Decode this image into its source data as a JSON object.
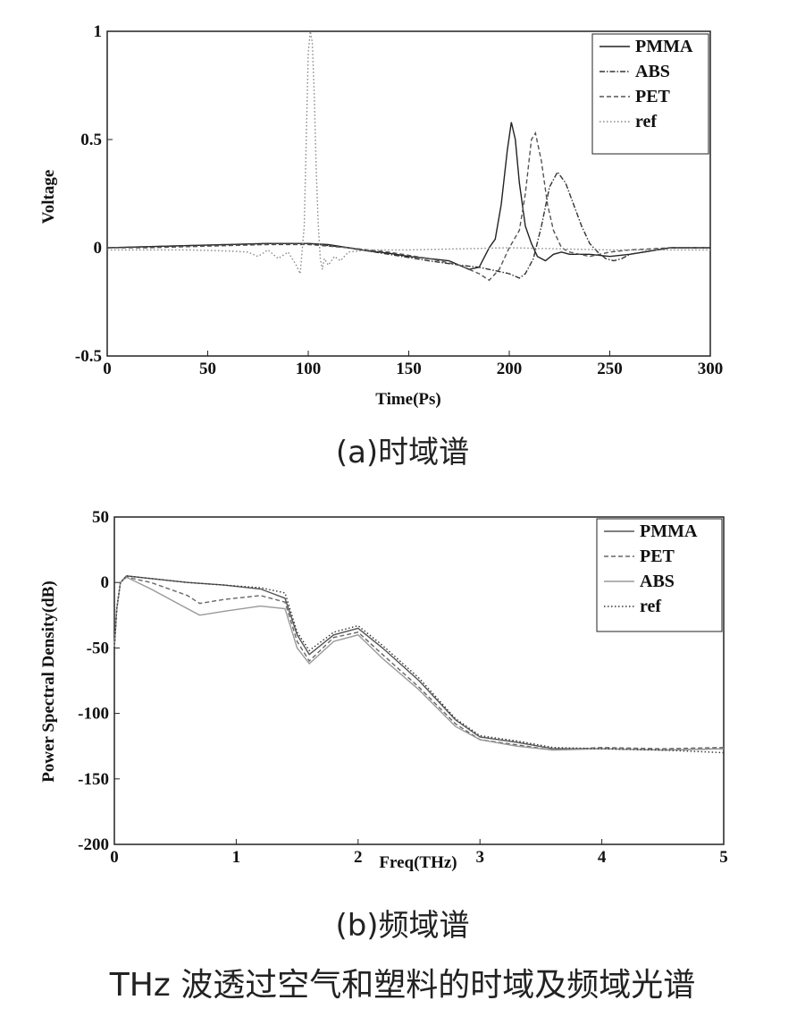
{
  "chart_data": [
    {
      "type": "line",
      "title": "",
      "xlabel": "Time(Ps)",
      "ylabel": "Voltage",
      "xlim": [
        0,
        300
      ],
      "ylim": [
        -0.5,
        1
      ],
      "xticks": [
        "0",
        "50",
        "100",
        "150",
        "200",
        "250",
        "300"
      ],
      "yticks": [
        "-0.5",
        "0",
        "0.5",
        "1"
      ],
      "legend_position": "top-right",
      "series": [
        {
          "name": "PMMA",
          "style": "solid",
          "color": "#222222",
          "x": [
            0,
            20,
            40,
            60,
            80,
            100,
            110,
            120,
            130,
            140,
            150,
            160,
            170,
            175,
            180,
            185,
            190,
            193,
            196,
            199,
            201,
            203,
            205,
            208,
            211,
            214,
            218,
            222,
            226,
            230,
            240,
            250,
            260,
            280,
            300
          ],
          "y": [
            0.0,
            0.005,
            0.01,
            0.015,
            0.02,
            0.02,
            0.015,
            0.0,
            -0.015,
            -0.025,
            -0.04,
            -0.05,
            -0.06,
            -0.08,
            -0.1,
            -0.09,
            0.0,
            0.04,
            0.2,
            0.45,
            0.58,
            0.5,
            0.3,
            0.1,
            0.02,
            -0.04,
            -0.06,
            -0.03,
            -0.02,
            -0.03,
            -0.03,
            -0.04,
            -0.03,
            0.0,
            0.0
          ]
        },
        {
          "name": "ABS",
          "style": "dash-dot",
          "color": "#333333",
          "x": [
            0,
            20,
            40,
            60,
            80,
            100,
            120,
            140,
            160,
            175,
            185,
            190,
            195,
            200,
            205,
            208,
            212,
            216,
            220,
            224,
            228,
            232,
            236,
            240,
            244,
            248,
            252,
            256,
            260,
            280,
            300
          ],
          "y": [
            0.0,
            0.005,
            0.01,
            0.015,
            0.02,
            0.02,
            0.0,
            -0.03,
            -0.06,
            -0.08,
            -0.09,
            -0.1,
            -0.11,
            -0.12,
            -0.14,
            -0.12,
            -0.05,
            0.1,
            0.28,
            0.35,
            0.3,
            0.2,
            0.1,
            0.02,
            -0.02,
            -0.05,
            -0.06,
            -0.05,
            -0.03,
            0.0,
            0.0
          ]
        },
        {
          "name": "PET",
          "style": "dashed",
          "color": "#555555",
          "x": [
            0,
            20,
            40,
            60,
            80,
            100,
            120,
            140,
            160,
            175,
            185,
            190,
            195,
            200,
            205,
            208,
            211,
            213,
            216,
            219,
            222,
            226,
            230,
            235,
            240,
            245,
            250,
            260,
            280,
            300
          ],
          "y": [
            0.0,
            0.0,
            0.005,
            0.01,
            0.015,
            0.015,
            0.0,
            -0.02,
            -0.05,
            -0.08,
            -0.12,
            -0.15,
            -0.1,
            0.0,
            0.08,
            0.25,
            0.5,
            0.53,
            0.4,
            0.2,
            0.08,
            0.0,
            -0.02,
            -0.03,
            -0.04,
            -0.03,
            -0.02,
            -0.01,
            0.0,
            0.0
          ]
        },
        {
          "name": "ref",
          "style": "dotted",
          "color": "#888888",
          "x": [
            0,
            20,
            40,
            60,
            70,
            75,
            80,
            85,
            90,
            94,
            96,
            98,
            99,
            100,
            101,
            102,
            103,
            104,
            105,
            106,
            107,
            108,
            110,
            113,
            116,
            120,
            130,
            150,
            200,
            250,
            300
          ],
          "y": [
            -0.01,
            -0.01,
            -0.01,
            -0.015,
            -0.02,
            -0.04,
            -0.01,
            -0.05,
            -0.02,
            -0.08,
            -0.12,
            0.1,
            0.5,
            0.9,
            1.0,
            0.95,
            0.7,
            0.35,
            0.1,
            -0.05,
            -0.1,
            -0.05,
            -0.08,
            -0.04,
            -0.06,
            -0.02,
            -0.01,
            -0.01,
            0.0,
            -0.01,
            -0.01
          ]
        }
      ]
    },
    {
      "type": "line",
      "title": "",
      "xlabel": "Freq(THz)",
      "ylabel": "Power Spectral Density(dB)",
      "xlim": [
        0,
        5
      ],
      "ylim": [
        -200,
        50
      ],
      "xticks": [
        "0",
        "1",
        "2",
        "3",
        "4",
        "5"
      ],
      "yticks": [
        "-200",
        "-150",
        "-100",
        "-50",
        "0",
        "50"
      ],
      "legend_position": "top-right",
      "series": [
        {
          "name": "PMMA",
          "style": "solid",
          "color": "#555555",
          "x": [
            0,
            0.02,
            0.05,
            0.1,
            0.3,
            0.6,
            0.9,
            1.2,
            1.4,
            1.5,
            1.6,
            1.8,
            2.0,
            2.2,
            2.5,
            2.8,
            3.0,
            3.3,
            3.6,
            4.0,
            4.5,
            5.0
          ],
          "y": [
            -50,
            -20,
            0,
            5,
            3,
            0,
            -2,
            -5,
            -12,
            -40,
            -55,
            -40,
            -35,
            -50,
            -75,
            -105,
            -118,
            -122,
            -127,
            -127,
            -128,
            -127
          ]
        },
        {
          "name": "PET",
          "style": "dashed",
          "color": "#666666",
          "x": [
            0,
            0.02,
            0.05,
            0.1,
            0.3,
            0.6,
            0.7,
            0.9,
            1.2,
            1.4,
            1.5,
            1.6,
            1.8,
            2.0,
            2.2,
            2.5,
            2.8,
            3.0,
            3.3,
            3.6,
            4.0,
            4.5,
            5.0
          ],
          "y": [
            -50,
            -20,
            0,
            4,
            0,
            -10,
            -16,
            -13,
            -10,
            -15,
            -45,
            -60,
            -42,
            -38,
            -55,
            -80,
            -108,
            -120,
            -124,
            -128,
            -126,
            -127,
            -126
          ]
        },
        {
          "name": "ABS",
          "style": "solid",
          "color": "#999999",
          "x": [
            0,
            0.02,
            0.05,
            0.1,
            0.3,
            0.6,
            0.7,
            0.9,
            1.2,
            1.4,
            1.5,
            1.6,
            1.8,
            2.0,
            2.2,
            2.5,
            2.8,
            3.0,
            3.3,
            3.6,
            4.0,
            4.5,
            5.0
          ],
          "y": [
            -50,
            -20,
            0,
            4,
            -5,
            -20,
            -25,
            -22,
            -18,
            -20,
            -50,
            -62,
            -45,
            -40,
            -58,
            -82,
            -110,
            -120,
            -125,
            -128,
            -127,
            -128,
            -127
          ]
        },
        {
          "name": "ref",
          "style": "dotted",
          "color": "#333333",
          "x": [
            0,
            0.02,
            0.05,
            0.1,
            0.3,
            0.6,
            0.9,
            1.2,
            1.4,
            1.5,
            1.6,
            1.8,
            2.0,
            2.2,
            2.5,
            2.8,
            3.0,
            3.3,
            3.6,
            4.0,
            4.5,
            5.0
          ],
          "y": [
            -50,
            -20,
            0,
            5,
            3,
            0,
            -2,
            -4,
            -8,
            -38,
            -52,
            -38,
            -33,
            -48,
            -73,
            -104,
            -117,
            -121,
            -126,
            -127,
            -128,
            -130
          ]
        }
      ]
    }
  ],
  "captions": {
    "a": "(a)时域谱",
    "b": "(b)频域谱",
    "main": "THz 波透过空气和塑料的时域及频域光谱"
  }
}
